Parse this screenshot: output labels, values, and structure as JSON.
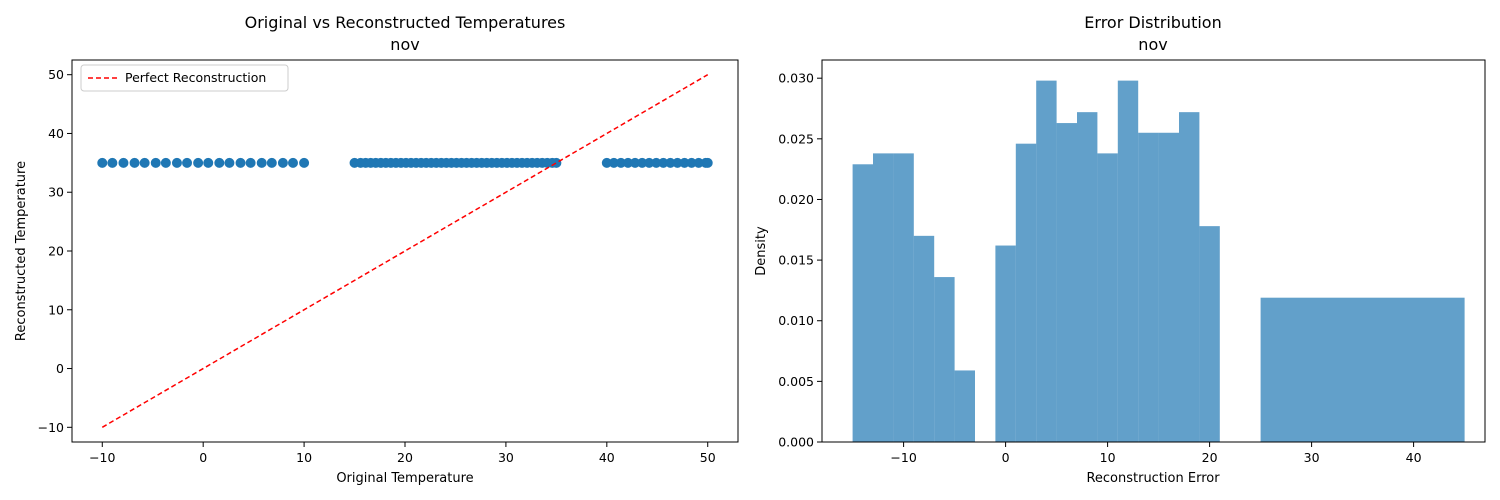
{
  "chart_data": [
    {
      "type": "scatter",
      "title": "Original vs Reconstructed Temperatures",
      "subtitle": "nov",
      "xlabel": "Original Temperature",
      "ylabel": "Reconstructed Temperature",
      "xlim": [
        -13,
        53
      ],
      "ylim": [
        -12.5,
        52.5
      ],
      "xticks": [
        -10,
        0,
        10,
        20,
        30,
        40,
        50
      ],
      "yticks": [
        -10,
        0,
        10,
        20,
        30,
        40,
        50
      ],
      "xtick_labels": [
        "−10",
        "0",
        "10",
        "20",
        "30",
        "40",
        "50"
      ],
      "ytick_labels": [
        "−10",
        "0",
        "10",
        "20",
        "30",
        "40",
        "50"
      ],
      "grid": false,
      "legend_position": "top-left",
      "colors": {
        "points": "#1f77b4",
        "reference": "#ff0000"
      },
      "series": [
        {
          "kind": "points",
          "x": [
            -10,
            -9,
            -7.9,
            -6.8,
            -5.8,
            -4.7,
            -3.7,
            -2.6,
            -1.6,
            -0.5,
            0.5,
            1.6,
            2.6,
            3.7,
            4.7,
            5.8,
            6.8,
            7.9,
            8.9,
            10,
            15,
            15.6,
            16.1,
            16.6,
            17.1,
            17.6,
            18.1,
            18.6,
            19.1,
            19.6,
            20.1,
            20.6,
            21.1,
            21.6,
            22.1,
            22.6,
            23.1,
            23.6,
            24.1,
            24.6,
            25.1,
            25.6,
            26.1,
            26.6,
            27.1,
            27.6,
            28.1,
            28.6,
            29.1,
            29.6,
            30.1,
            30.6,
            31.1,
            31.6,
            32.1,
            32.6,
            33.1,
            33.6,
            34.1,
            34.6,
            35,
            40,
            40.7,
            41.4,
            42.1,
            42.8,
            43.5,
            44.2,
            44.9,
            45.6,
            46.3,
            47,
            47.7,
            48.4,
            49.1,
            49.8,
            50
          ],
          "y_constant": 35
        },
        {
          "name": "Perfect Reconstruction",
          "kind": "line",
          "x": [
            -10,
            50
          ],
          "y": [
            -10,
            50
          ]
        }
      ]
    },
    {
      "type": "bar",
      "title": "Error Distribution",
      "subtitle": "nov",
      "xlabel": "Reconstruction Error",
      "ylabel": "Density",
      "xlim": [
        -18,
        47
      ],
      "ylim": [
        0,
        0.0315
      ],
      "xticks": [
        -10,
        0,
        10,
        20,
        30,
        40
      ],
      "xtick_labels": [
        "−10",
        "0",
        "10",
        "20",
        "30",
        "40"
      ],
      "yticks": [
        0,
        0.005,
        0.01,
        0.015,
        0.02,
        0.025,
        0.03
      ],
      "ytick_labels": [
        "0.000",
        "0.005",
        "0.010",
        "0.015",
        "0.020",
        "0.025",
        "0.030"
      ],
      "grid": false,
      "colors": {
        "bars": "#1f77b4",
        "bar_alpha": "0.7"
      },
      "bins": [
        {
          "x0": -15,
          "x1": -13,
          "density": 0.0229
        },
        {
          "x0": -13,
          "x1": -11,
          "density": 0.0238
        },
        {
          "x0": -11,
          "x1": -9,
          "density": 0.0238
        },
        {
          "x0": -9,
          "x1": -7,
          "density": 0.017
        },
        {
          "x0": -7,
          "x1": -5,
          "density": 0.0136
        },
        {
          "x0": -5,
          "x1": -3,
          "density": 0.0059
        },
        {
          "x0": -1,
          "x1": 1,
          "density": 0.0162
        },
        {
          "x0": 1,
          "x1": 3,
          "density": 0.0246
        },
        {
          "x0": 3,
          "x1": 5,
          "density": 0.0298
        },
        {
          "x0": 5,
          "x1": 7,
          "density": 0.0263
        },
        {
          "x0": 7,
          "x1": 9,
          "density": 0.0272
        },
        {
          "x0": 9,
          "x1": 11,
          "density": 0.0238
        },
        {
          "x0": 11,
          "x1": 13,
          "density": 0.0298
        },
        {
          "x0": 13,
          "x1": 15,
          "density": 0.0255
        },
        {
          "x0": 15,
          "x1": 17,
          "density": 0.0255
        },
        {
          "x0": 17,
          "x1": 19,
          "density": 0.0272
        },
        {
          "x0": 19,
          "x1": 21,
          "density": 0.0178
        },
        {
          "x0": 25,
          "x1": 45,
          "density": 0.0119
        }
      ]
    }
  ]
}
